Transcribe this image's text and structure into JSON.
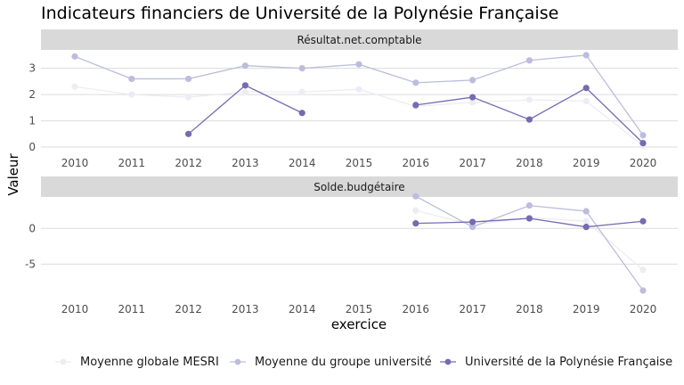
{
  "chart_data": {
    "type": "line",
    "title": "Indicateurs financiers de Université de la Polynésie Française",
    "xlabel": "exercice",
    "ylabel": "Valeur",
    "x": [
      2010,
      2011,
      2012,
      2013,
      2014,
      2015,
      2016,
      2017,
      2018,
      2019,
      2020
    ],
    "series_names": [
      "Moyenne globale MESRI",
      "Moyenne du groupe université",
      "Université de la Polynésie Française"
    ],
    "series_colors": [
      "#ececf5",
      "#bcbddc",
      "#756bb1"
    ],
    "legend_position": "bottom",
    "panels": [
      {
        "label": "Résultat.net.comptable",
        "ylim": [
          -0.1,
          3.7
        ],
        "yticks": [
          0,
          1,
          2,
          3
        ],
        "series": [
          {
            "values": [
              2.3,
              2.0,
              1.9,
              2.1,
              2.1,
              2.2,
              1.55,
              1.7,
              1.8,
              1.75,
              0.05
            ]
          },
          {
            "values": [
              3.45,
              2.6,
              2.6,
              3.1,
              3.0,
              3.15,
              2.45,
              2.55,
              3.3,
              3.5,
              0.45
            ]
          },
          {
            "values": [
              null,
              null,
              0.5,
              2.35,
              1.3,
              null,
              1.6,
              1.9,
              1.05,
              2.25,
              0.15
            ]
          }
        ]
      },
      {
        "label": "Solde.budgétaire",
        "ylim": [
          -9.2,
          4.4
        ],
        "yticks": [
          -5,
          0
        ],
        "series": [
          {
            "values": [
              null,
              null,
              null,
              null,
              null,
              null,
              2.5,
              0.5,
              1.5,
              1.0,
              -5.8
            ]
          },
          {
            "values": [
              null,
              null,
              null,
              null,
              null,
              null,
              4.5,
              0.2,
              3.2,
              2.4,
              -8.7
            ]
          },
          {
            "values": [
              null,
              null,
              null,
              null,
              null,
              null,
              0.7,
              0.9,
              1.4,
              0.2,
              1.0
            ]
          }
        ]
      }
    ]
  }
}
